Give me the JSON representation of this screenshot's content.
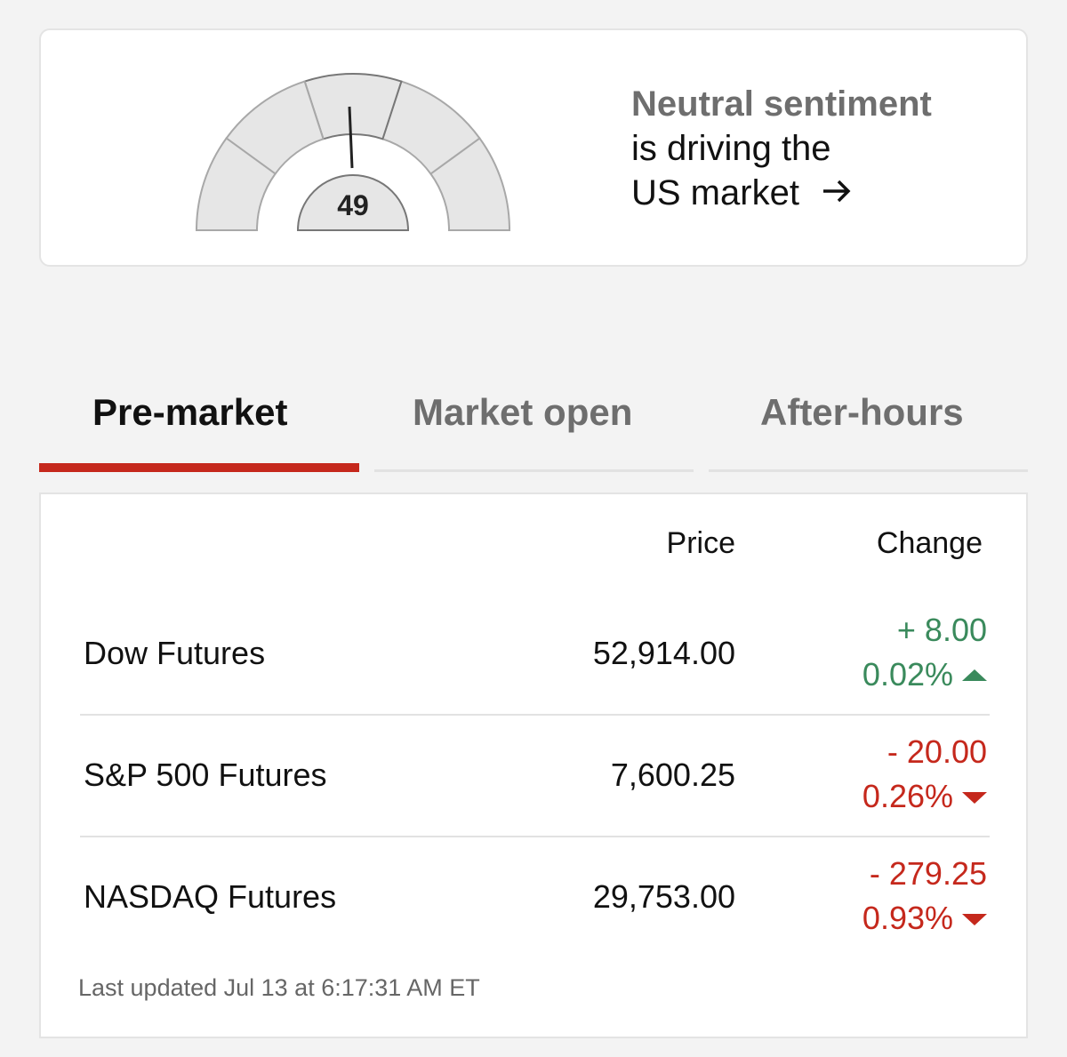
{
  "gauge": {
    "value": "49",
    "headline": "Neutral sentiment",
    "text_line_1": "is driving the",
    "text_line_2": "US market"
  },
  "tabs": [
    "Pre-market",
    "Market open",
    "After-hours"
  ],
  "table": {
    "headers": [
      "Price",
      "Change"
    ],
    "rows": [
      {
        "name": "Dow Futures",
        "price": "52,914.00",
        "change": "+ 8.00",
        "percent": "0.02%"
      },
      {
        "name": "S&P 500 Futures",
        "price": "7,600.25",
        "change": "- 20.00",
        "percent": "0.26%"
      },
      {
        "name": "NASDAQ Futures",
        "price": "29,753.00",
        "change": "- 279.25",
        "percent": "0.93%"
      }
    ]
  },
  "footer": "Last updated Jul 13 at 6:17:31 AM ET"
}
